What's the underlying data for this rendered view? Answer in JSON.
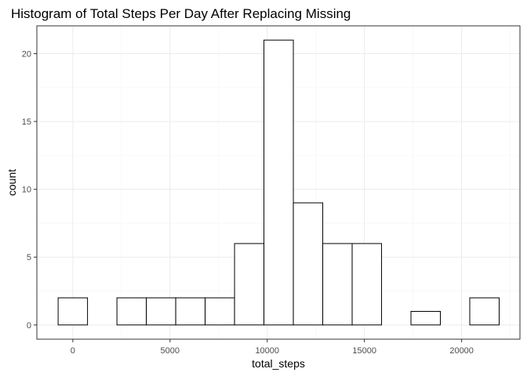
{
  "chart_data": {
    "type": "bar",
    "title": "Histogram of Total Steps Per Day After Replacing Missing",
    "xlabel": "total_steps",
    "ylabel": "count",
    "bin_width": 1512.5,
    "bins": [
      {
        "center": 0,
        "count": 2
      },
      {
        "center": 1512.5,
        "count": 0
      },
      {
        "center": 3025,
        "count": 2
      },
      {
        "center": 4537.5,
        "count": 2
      },
      {
        "center": 6050,
        "count": 2
      },
      {
        "center": 7562.5,
        "count": 2
      },
      {
        "center": 9075,
        "count": 6
      },
      {
        "center": 10587.5,
        "count": 21
      },
      {
        "center": 12100,
        "count": 9
      },
      {
        "center": 13612.5,
        "count": 6
      },
      {
        "center": 15125,
        "count": 6
      },
      {
        "center": 16637.5,
        "count": 0
      },
      {
        "center": 18150,
        "count": 1
      },
      {
        "center": 19662.5,
        "count": 0
      },
      {
        "center": 21175,
        "count": 2
      }
    ],
    "xlim": [
      -1850,
      23000
    ],
    "ylim": [
      -1.05,
      22.05
    ],
    "x_ticks": [
      0,
      5000,
      10000,
      15000,
      20000
    ],
    "x_tick_labels": [
      "0",
      "5000",
      "10000",
      "15000",
      "20000"
    ],
    "y_ticks": [
      0,
      5,
      10,
      15,
      20
    ],
    "y_tick_labels": [
      "0",
      "5",
      "10",
      "15",
      "20"
    ],
    "grid": true,
    "legend": "none",
    "colors": {
      "bar_fill": "#ffffff",
      "bar_outline": "#000000",
      "grid": "#ebebeb",
      "panel_border": "#333333"
    }
  }
}
